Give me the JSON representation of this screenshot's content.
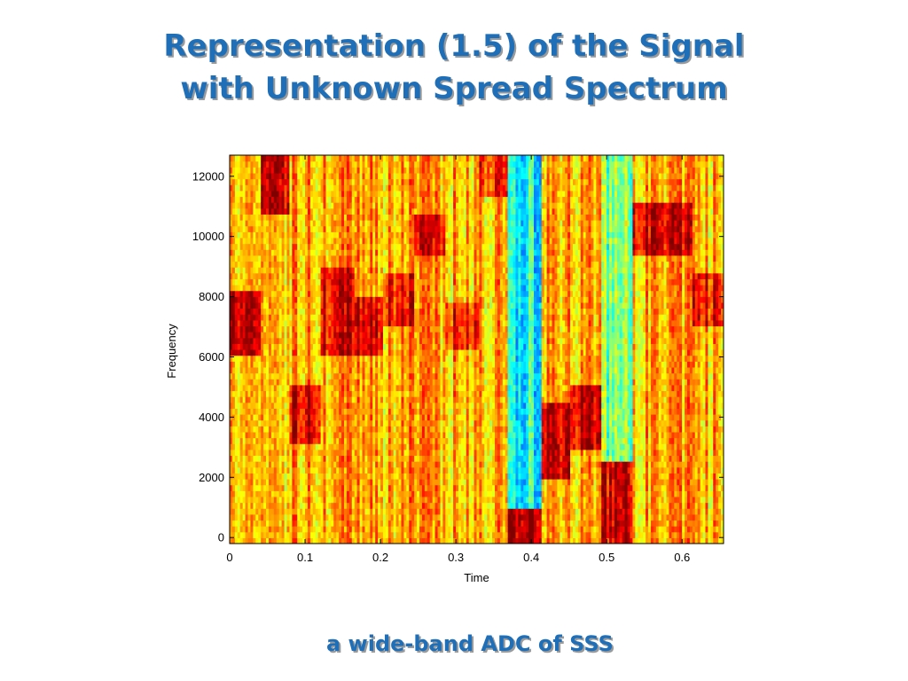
{
  "slide": {
    "title_line1": "Representation  (1.5) of  the Signal",
    "title_line2": "with Unknown Spread Spectrum",
    "caption": "a wide-band ADC of SSS"
  },
  "chart_data": {
    "type": "heatmap",
    "title": "",
    "xlabel": "Time",
    "ylabel": "Frequency",
    "xlim": [
      0,
      0.655
    ],
    "ylim": [
      -200,
      12700
    ],
    "xticks": [
      0,
      0.1,
      0.2,
      0.3,
      0.4,
      0.5,
      0.6
    ],
    "xtick_labels": [
      "0",
      "0.1",
      "0.2",
      "0.3",
      "0.4",
      "0.5",
      "0.6"
    ],
    "yticks": [
      0,
      2000,
      4000,
      6000,
      8000,
      10000,
      12000
    ],
    "ytick_labels": [
      "0",
      "2000",
      "4000",
      "6000",
      "8000",
      "10000",
      "12000"
    ],
    "colormap": "jet",
    "grid": false,
    "background_intensity": 0.7,
    "low_intensity_bands": [
      {
        "t_start": 0.37,
        "t_end": 0.412,
        "f_start": 1000,
        "f_end": 12700,
        "level": 0.38
      },
      {
        "t_start": 0.492,
        "t_end": 0.535,
        "f_start": 2600,
        "f_end": 12700,
        "level": 0.5
      }
    ],
    "high_intensity_blocks": [
      {
        "t_start": 0.0,
        "t_end": 0.04,
        "f_start": 6000,
        "f_end": 8300,
        "level": 0.95
      },
      {
        "t_start": 0.04,
        "t_end": 0.08,
        "f_start": 10800,
        "f_end": 12700,
        "level": 0.95
      },
      {
        "t_start": 0.08,
        "t_end": 0.122,
        "f_start": 3200,
        "f_end": 5000,
        "level": 0.9
      },
      {
        "t_start": 0.122,
        "t_end": 0.165,
        "f_start": 6000,
        "f_end": 9000,
        "level": 0.88
      },
      {
        "t_start": 0.165,
        "t_end": 0.205,
        "f_start": 6000,
        "f_end": 8000,
        "level": 0.88
      },
      {
        "t_start": 0.205,
        "t_end": 0.245,
        "f_start": 7000,
        "f_end": 8800,
        "level": 0.86
      },
      {
        "t_start": 0.245,
        "t_end": 0.285,
        "f_start": 9400,
        "f_end": 10800,
        "level": 0.86
      },
      {
        "t_start": 0.285,
        "t_end": 0.33,
        "f_start": 6200,
        "f_end": 7800,
        "level": 0.85
      },
      {
        "t_start": 0.33,
        "t_end": 0.37,
        "f_start": 11400,
        "f_end": 12700,
        "level": 0.85
      },
      {
        "t_start": 0.37,
        "t_end": 0.412,
        "f_start": -200,
        "f_end": 1000,
        "level": 0.97
      },
      {
        "t_start": 0.412,
        "t_end": 0.45,
        "f_start": 2000,
        "f_end": 4400,
        "level": 0.92
      },
      {
        "t_start": 0.45,
        "t_end": 0.492,
        "f_start": 3000,
        "f_end": 5000,
        "level": 0.92
      },
      {
        "t_start": 0.492,
        "t_end": 0.535,
        "f_start": -200,
        "f_end": 2600,
        "level": 0.92
      },
      {
        "t_start": 0.535,
        "t_end": 0.575,
        "f_start": 9400,
        "f_end": 11200,
        "level": 0.92
      },
      {
        "t_start": 0.575,
        "t_end": 0.615,
        "f_start": 9400,
        "f_end": 11200,
        "level": 0.88
      },
      {
        "t_start": 0.615,
        "t_end": 0.655,
        "f_start": 7000,
        "f_end": 8800,
        "level": 0.88
      }
    ]
  }
}
